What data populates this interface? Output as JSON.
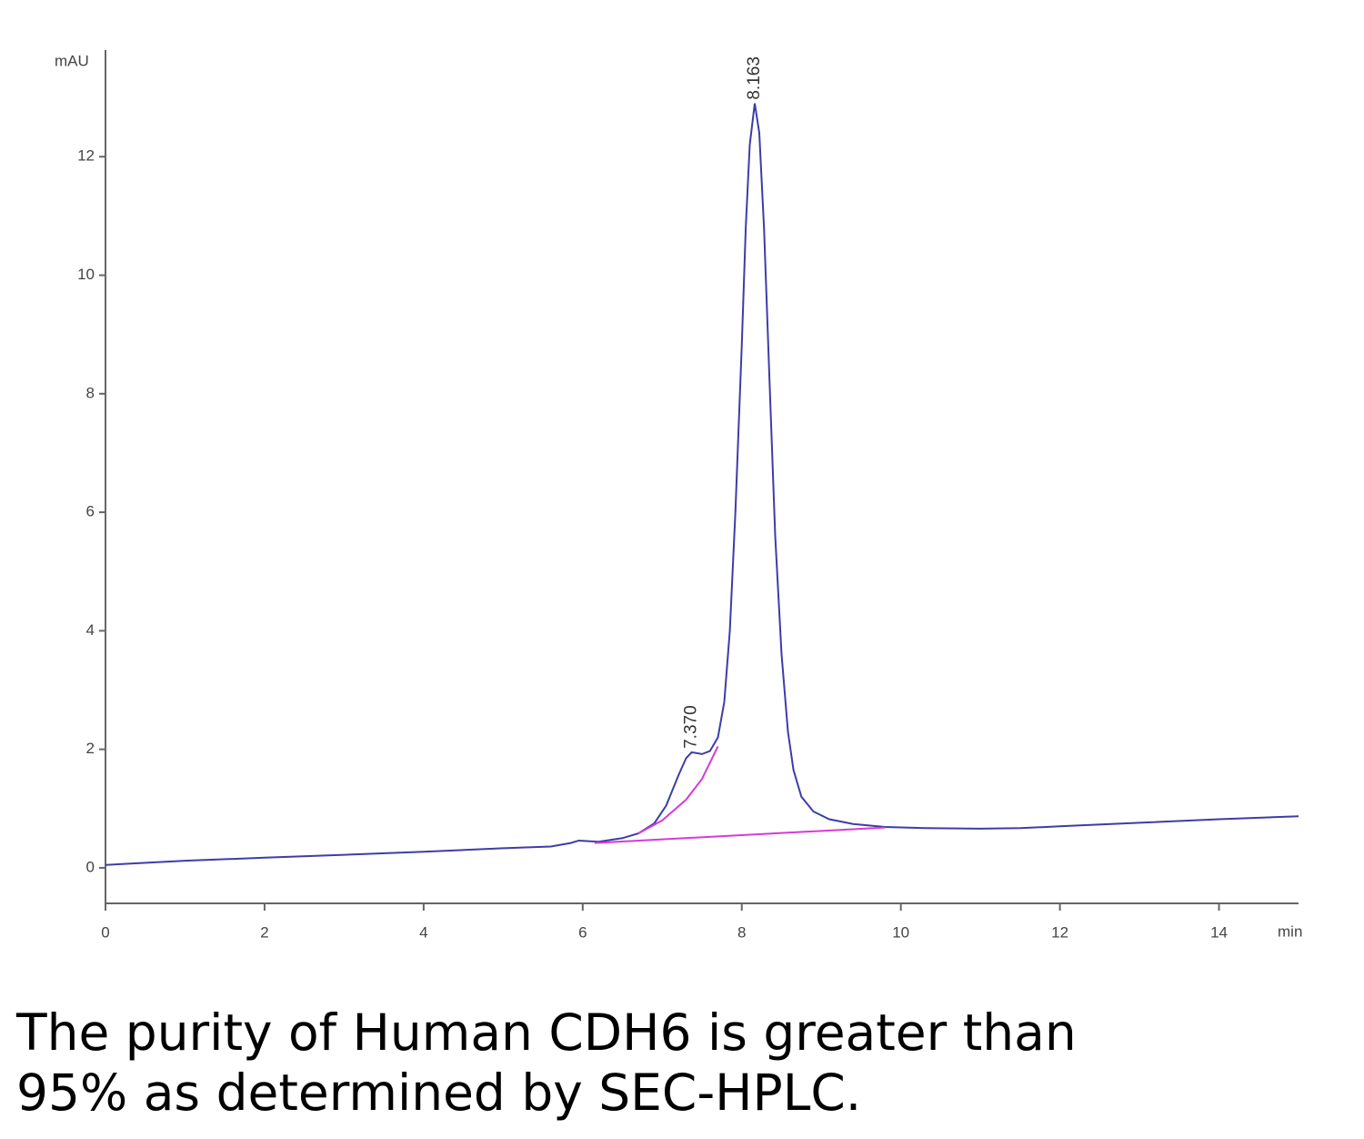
{
  "chart_data": {
    "type": "line",
    "ylabel": "mAU",
    "xlabel": "min",
    "xlim": [
      0,
      15
    ],
    "ylim": [
      -0.6,
      13.8
    ],
    "xticks": [
      0,
      2,
      4,
      6,
      8,
      10,
      12,
      14
    ],
    "yticks": [
      0,
      2,
      4,
      6,
      8,
      10,
      12
    ],
    "series": [
      {
        "color": "#3d3da8",
        "x": [
          0,
          1,
          2,
          3,
          4,
          5,
          5.6,
          5.85,
          5.95,
          6.2,
          6.5,
          6.7,
          6.9,
          7.05,
          7.2,
          7.3,
          7.37,
          7.5,
          7.6,
          7.7,
          7.78,
          7.85,
          7.92,
          8.0,
          8.05,
          8.1,
          8.163,
          8.22,
          8.28,
          8.35,
          8.42,
          8.5,
          8.58,
          8.65,
          8.75,
          8.9,
          9.1,
          9.4,
          9.8,
          10.3,
          11,
          11.5,
          12,
          13,
          14,
          15
        ],
        "values": [
          0.05,
          0.12,
          0.17,
          0.22,
          0.27,
          0.33,
          0.36,
          0.42,
          0.46,
          0.44,
          0.5,
          0.58,
          0.75,
          1.05,
          1.55,
          1.85,
          1.95,
          1.92,
          1.97,
          2.2,
          2.8,
          4.0,
          6.0,
          8.8,
          10.8,
          12.2,
          12.9,
          12.4,
          10.8,
          8.2,
          5.6,
          3.6,
          2.3,
          1.65,
          1.2,
          0.95,
          0.82,
          0.74,
          0.69,
          0.67,
          0.66,
          0.67,
          0.7,
          0.76,
          0.82,
          0.87
        ]
      },
      {
        "color": "#d63bd6",
        "x": [
          6.15,
          9.8
        ],
        "values": [
          0.42,
          0.68
        ]
      },
      {
        "color": "#d63bd6",
        "x": [
          6.7,
          7.0,
          7.3,
          7.5,
          7.7
        ],
        "values": [
          0.58,
          0.8,
          1.15,
          1.5,
          2.05
        ]
      }
    ],
    "peak_labels": [
      {
        "value": 7.37,
        "label": "7.370"
      },
      {
        "value": 8.163,
        "label": "8.163"
      }
    ]
  },
  "caption": "The purity of Human CDH6 is greater than 95% as determined by SEC-HPLC."
}
